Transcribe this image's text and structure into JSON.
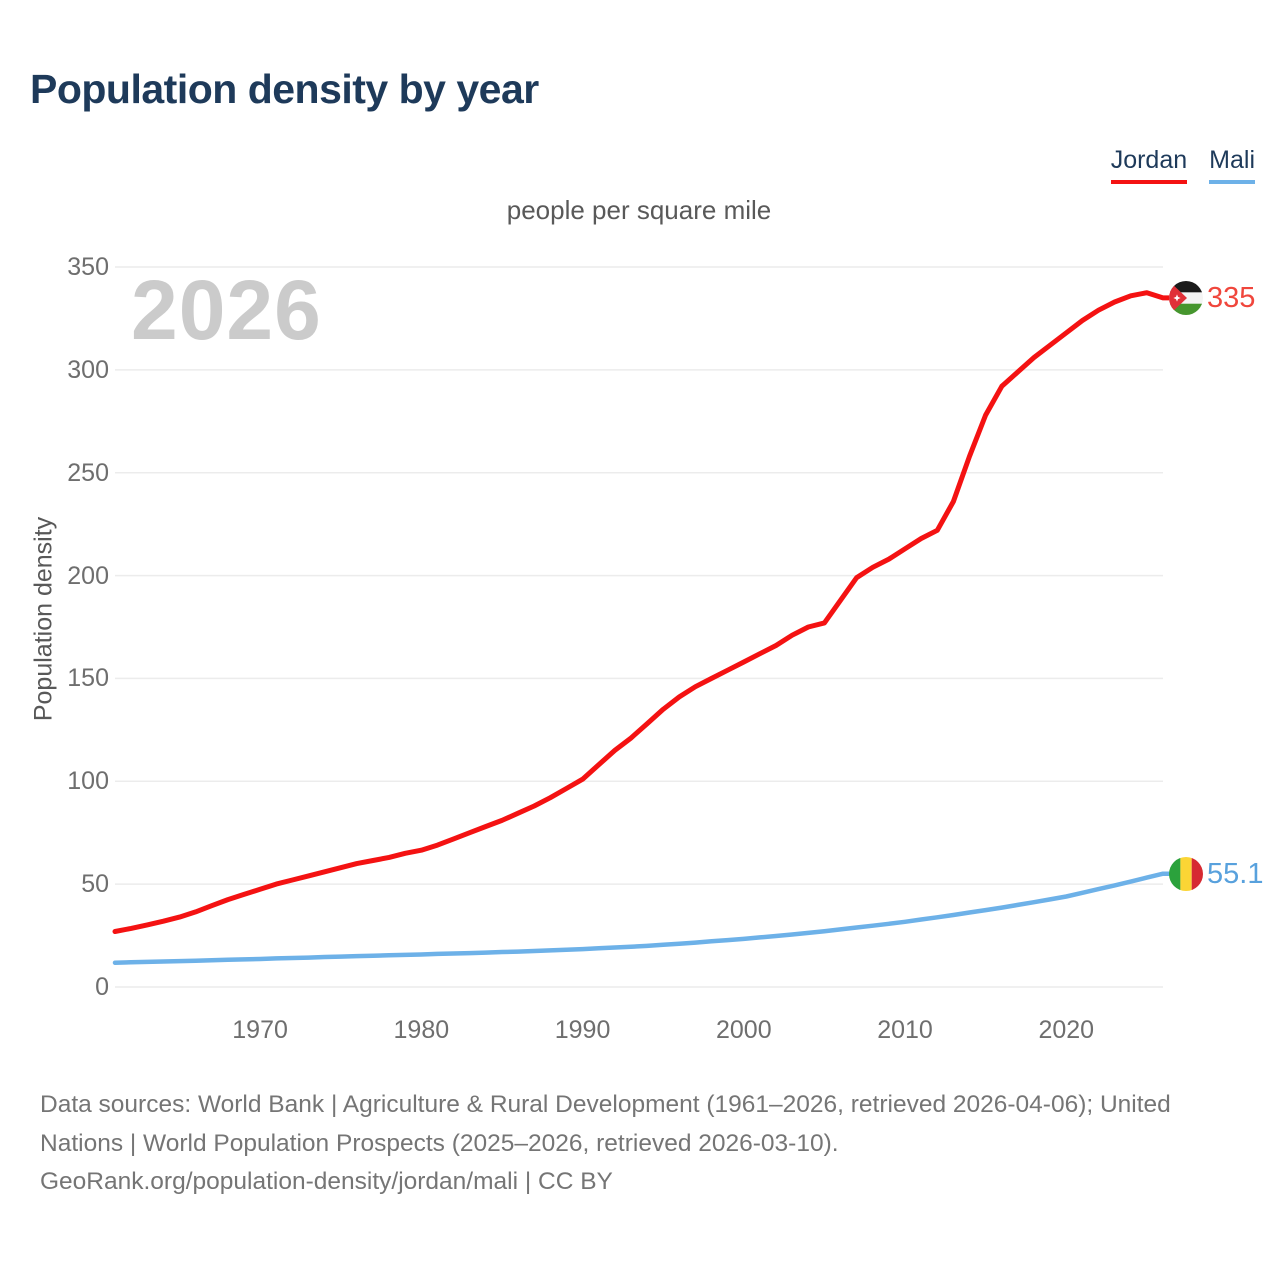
{
  "header": {
    "title": "Population density by year"
  },
  "legend": {
    "items": [
      {
        "label": "Jordan",
        "color": "#f41212"
      },
      {
        "label": "Mali",
        "color": "#6db1e8"
      }
    ]
  },
  "chart": {
    "subtitle": "people per square mile",
    "y_axis_label": "Population density",
    "year_watermark": "2026"
  },
  "icons": {
    "jordan_flag": "jordan-flag-icon",
    "mali_flag": "mali-flag-icon"
  },
  "chart_data": {
    "type": "line",
    "title": "Population density by year",
    "subtitle": "people per square mile",
    "xlabel": "",
    "ylabel": "Population density",
    "unit": "people per square mile",
    "xlim": [
      1961,
      2026
    ],
    "ylim": [
      0,
      350
    ],
    "yticks": [
      0,
      50,
      100,
      150,
      200,
      250,
      300,
      350
    ],
    "xticks": [
      1970,
      1980,
      1990,
      2000,
      2010,
      2020
    ],
    "grid": true,
    "legend_position": "top-right",
    "current_year_watermark": "2026",
    "x": [
      1961,
      1962,
      1963,
      1964,
      1965,
      1966,
      1967,
      1968,
      1969,
      1970,
      1971,
      1972,
      1973,
      1974,
      1975,
      1976,
      1977,
      1978,
      1979,
      1980,
      1981,
      1982,
      1983,
      1984,
      1985,
      1986,
      1987,
      1988,
      1989,
      1990,
      1991,
      1992,
      1993,
      1994,
      1995,
      1996,
      1997,
      1998,
      1999,
      2000,
      2001,
      2002,
      2003,
      2004,
      2005,
      2006,
      2007,
      2008,
      2009,
      2010,
      2011,
      2012,
      2013,
      2014,
      2015,
      2016,
      2017,
      2018,
      2019,
      2020,
      2021,
      2022,
      2023,
      2024,
      2025,
      2026
    ],
    "series": [
      {
        "name": "Jordan",
        "color": "#f41212",
        "label_color": "#f0463c",
        "end_label": "335",
        "values": [
          27,
          28.5,
          30.2,
          32,
          34,
          36.5,
          39.5,
          42.5,
          45,
          47.5,
          50,
          52,
          54,
          56,
          58,
          60,
          61.5,
          63,
          65,
          66.5,
          69,
          72,
          75,
          78,
          81,
          84.5,
          88,
          92,
          96.5,
          101,
          108,
          115,
          121,
          128,
          135,
          141,
          146,
          150,
          154,
          158,
          162,
          166,
          171,
          175,
          177,
          188,
          199,
          204,
          208,
          213,
          218,
          222,
          236,
          258,
          278,
          292,
          299,
          306,
          312,
          318,
          324,
          329,
          333,
          336,
          337.5,
          335
        ]
      },
      {
        "name": "Mali",
        "color": "#6db1e8",
        "label_color": "#58a1dd",
        "end_label": "55.1",
        "values": [
          11.8,
          12,
          12.2,
          12.4,
          12.6,
          12.8,
          13,
          13.2,
          13.4,
          13.6,
          13.9,
          14.1,
          14.3,
          14.6,
          14.8,
          15,
          15.2,
          15.4,
          15.6,
          15.8,
          16.1,
          16.3,
          16.5,
          16.7,
          17,
          17.2,
          17.5,
          17.8,
          18.1,
          18.4,
          18.8,
          19.2,
          19.6,
          20,
          20.5,
          21,
          21.6,
          22.2,
          22.8,
          23.4,
          24.1,
          24.8,
          25.5,
          26.3,
          27.1,
          28,
          28.9,
          29.8,
          30.7,
          31.7,
          32.8,
          33.9,
          35,
          36.2,
          37.4,
          38.6,
          39.9,
          41.2,
          42.6,
          44,
          45.8,
          47.6,
          49.4,
          51.3,
          53.2,
          55.1
        ]
      }
    ]
  },
  "footer": {
    "line1": "Data sources: World Bank | Agriculture & Rural Development (1961–2026, retrieved 2026-04-06); United",
    "line2": "Nations | World Population Prospects (2025–2026, retrieved 2026-03-10).",
    "line3": "GeoRank.org/population-density/jordan/mali | CC BY"
  }
}
